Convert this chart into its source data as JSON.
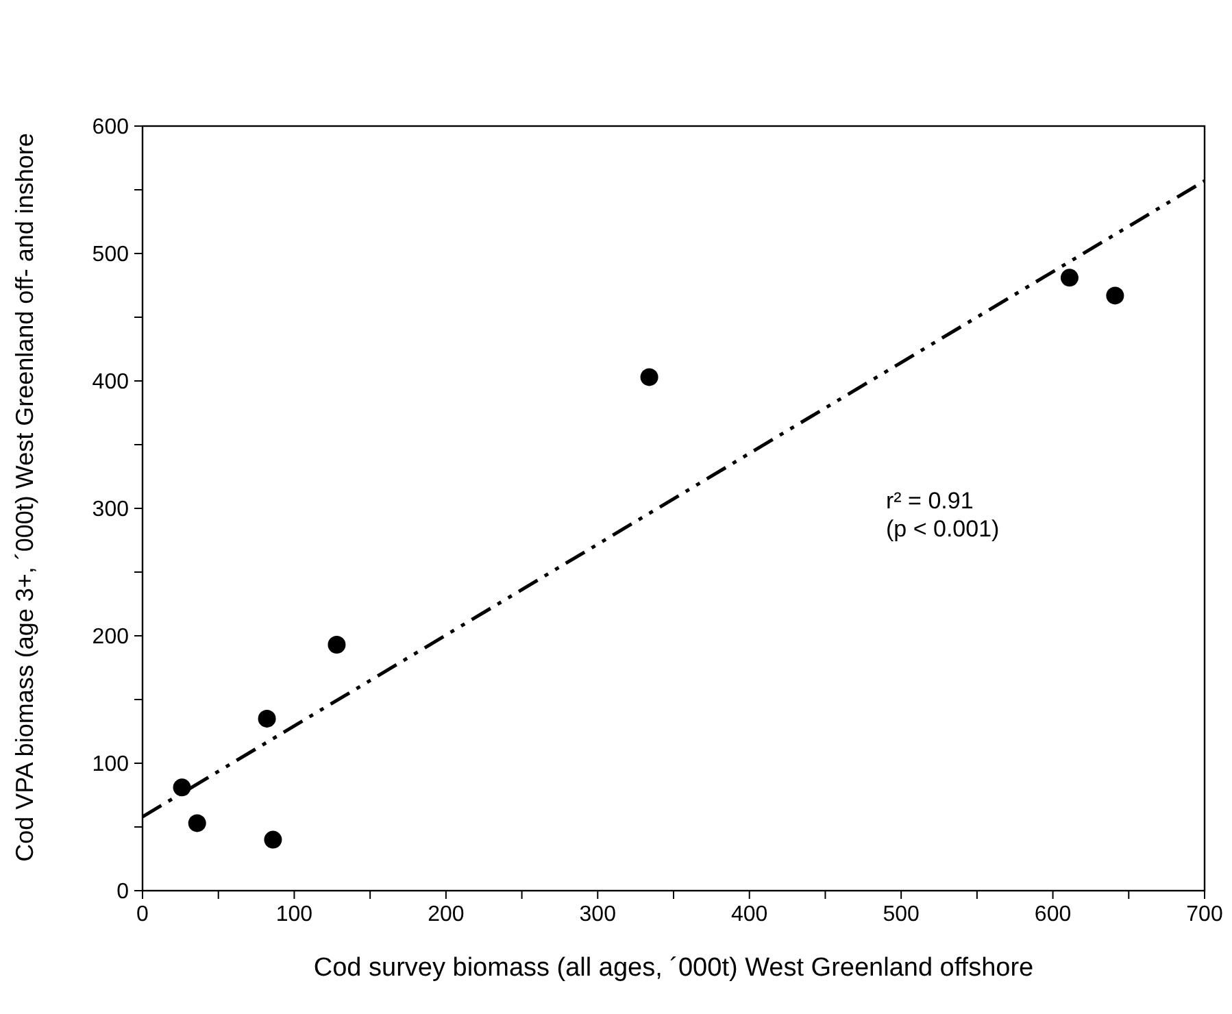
{
  "chart_data": {
    "type": "scatter",
    "xlabel": "Cod survey biomass (all ages, ´000t) West Greenland offshore",
    "ylabel": "Cod VPA biomass (age 3+, ´000t) West Greenland off- and inshore",
    "marker": "circle",
    "grid": false,
    "xlim": [
      0,
      700
    ],
    "ylim": [
      0,
      600
    ],
    "xticks": [
      0,
      {
        "value": 50,
        "label": null
      },
      100,
      {
        "value": 150,
        "label": null
      },
      200,
      {
        "value": 250,
        "label": null
      },
      300,
      {
        "value": 350,
        "label": null
      },
      400,
      {
        "value": 450,
        "label": null
      },
      500,
      {
        "value": 550,
        "label": null
      },
      600,
      {
        "value": 650,
        "label": null
      },
      700
    ],
    "yticks": [
      0,
      {
        "value": 50,
        "label": null
      },
      100,
      {
        "value": 150,
        "label": null
      },
      200,
      {
        "value": 250,
        "label": null
      },
      300,
      {
        "value": 350,
        "label": null
      },
      400,
      {
        "value": 450,
        "label": null
      },
      500,
      {
        "value": 550,
        "label": null
      },
      600
    ],
    "series": [
      {
        "color": "#000000",
        "x": [
          26,
          36,
          82,
          86,
          128,
          334,
          611,
          641
        ],
        "values": [
          81,
          53,
          135,
          40,
          193,
          403,
          481,
          467
        ]
      },
      {
        "type": "line",
        "color": "#000000",
        "line_style": "dashed",
        "marker": "none",
        "x": [
          0,
          700
        ],
        "values": [
          58,
          557
        ]
      }
    ],
    "annotations": [
      "r² = 0.91\n(p < 0.001)"
    ]
  }
}
